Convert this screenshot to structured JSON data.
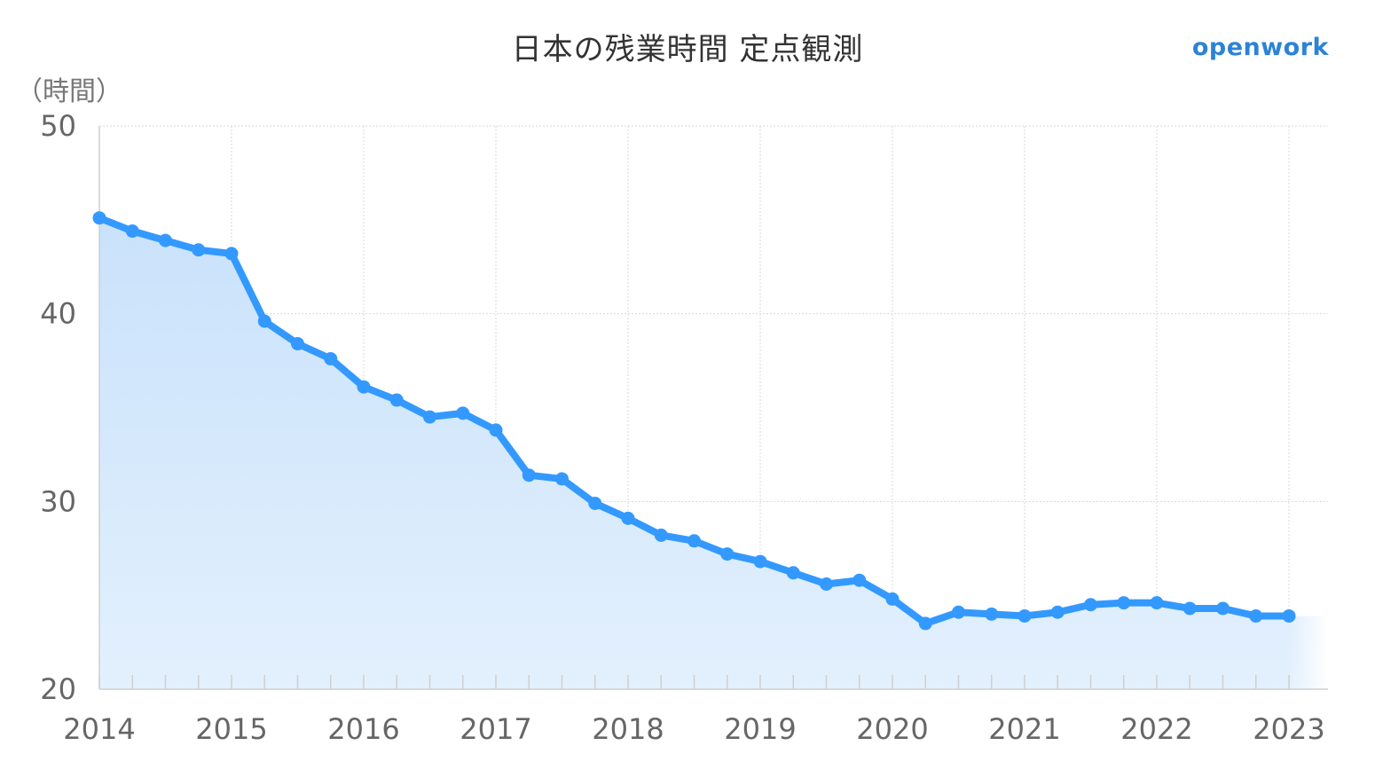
{
  "chart": {
    "title": "日本の残業時間 定点観測",
    "brand": "openwork",
    "unit": "（時間）"
  },
  "colors": {
    "line": "#3399ff",
    "area_top": "#c9e2fb",
    "area_bottom": "#e3f0fd",
    "grid": "#d9d9d9",
    "axis": "#cfcfcf",
    "title": "#333333",
    "brand": "#2c83d6",
    "tick": "#666666"
  },
  "chart_data": {
    "type": "area",
    "title": "日本の残業時間 定点観測",
    "ylabel": "（時間）",
    "xlabel": "",
    "ylim": [
      20,
      50
    ],
    "yticks": [
      20,
      30,
      40,
      50
    ],
    "xlim": [
      2014,
      2023
    ],
    "xticks": [
      "2014",
      "2015",
      "2016",
      "2017",
      "2018",
      "2019",
      "2020",
      "2021",
      "2022",
      "2023"
    ],
    "grid": true,
    "legend": "none",
    "series": [
      {
        "x": [
          2014.0,
          2014.25,
          2014.5,
          2014.75,
          2015.0,
          2015.25,
          2015.5,
          2015.75,
          2016.0,
          2016.25,
          2016.5,
          2016.75,
          2017.0,
          2017.25,
          2017.5,
          2017.75,
          2018.0,
          2018.25,
          2018.5,
          2018.75,
          2019.0,
          2019.25,
          2019.5,
          2019.75,
          2020.0,
          2020.25,
          2020.5,
          2020.75,
          2021.0,
          2021.25,
          2021.5,
          2021.75,
          2022.0,
          2022.25,
          2022.5,
          2022.75,
          2023.0
        ],
        "y": [
          45.1,
          44.4,
          43.9,
          43.4,
          43.2,
          39.6,
          38.4,
          37.6,
          36.1,
          35.4,
          34.5,
          34.7,
          33.8,
          31.4,
          31.2,
          29.9,
          29.1,
          28.2,
          27.9,
          27.2,
          26.8,
          26.2,
          25.6,
          25.8,
          24.8,
          23.5,
          24.1,
          24.0,
          23.9,
          24.1,
          24.5,
          24.6,
          24.6,
          24.3,
          24.3,
          23.9,
          23.9
        ]
      }
    ]
  }
}
